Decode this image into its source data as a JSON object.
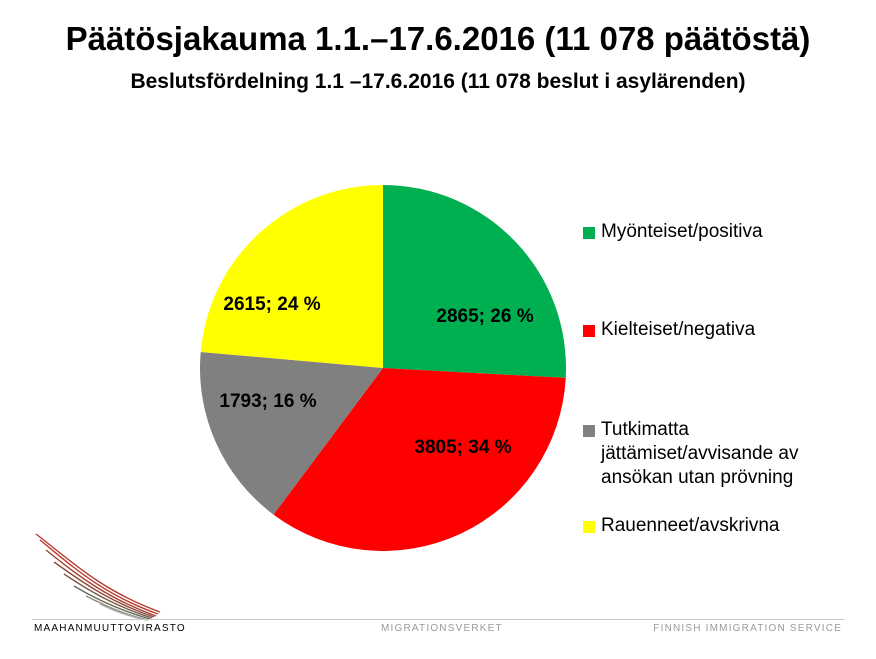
{
  "title": "Päätösjakauma 1.1.–17.6.2016 (11 078 päätöstä)",
  "subtitle": "Beslutsfördelning 1.1 –17.6.2016 (11 078 beslut i asylärenden)",
  "chart_data": {
    "type": "pie",
    "title": "Päätösjakauma 1.1.–17.6.2016 (11 078 päätöstä)",
    "subtitle": "Beslutsfördelning 1.1 –17.6.2016 (11 078 beslut i asylärenden)",
    "legend_position": "right",
    "slices": [
      {
        "name": "Myönteiset/positiva",
        "value": 2865,
        "percent": 26,
        "label": "2865; 26 %",
        "color": "#00b050"
      },
      {
        "name": "Kielteiset/negativa",
        "value": 3805,
        "percent": 34,
        "label": "3805; 34 %",
        "color": "#ff0000"
      },
      {
        "name": "Tutkimatta jättämiset/avvisande av ansökan utan prövning",
        "value": 1793,
        "percent": 16,
        "label": "1793; 16 %",
        "color": "#808080"
      },
      {
        "name": "Rauenneet/avskrivna",
        "value": 2615,
        "percent": 24,
        "label": "2615; 24 %",
        "color": "#ffff00"
      }
    ]
  },
  "footer": {
    "left": "MAAHANMUUTTOVIRASTO",
    "middle": "MIGRATIONSVERKET",
    "right": "FINNISH IMMIGRATION SERVICE"
  },
  "logo_icon": "wing-logo-icon"
}
